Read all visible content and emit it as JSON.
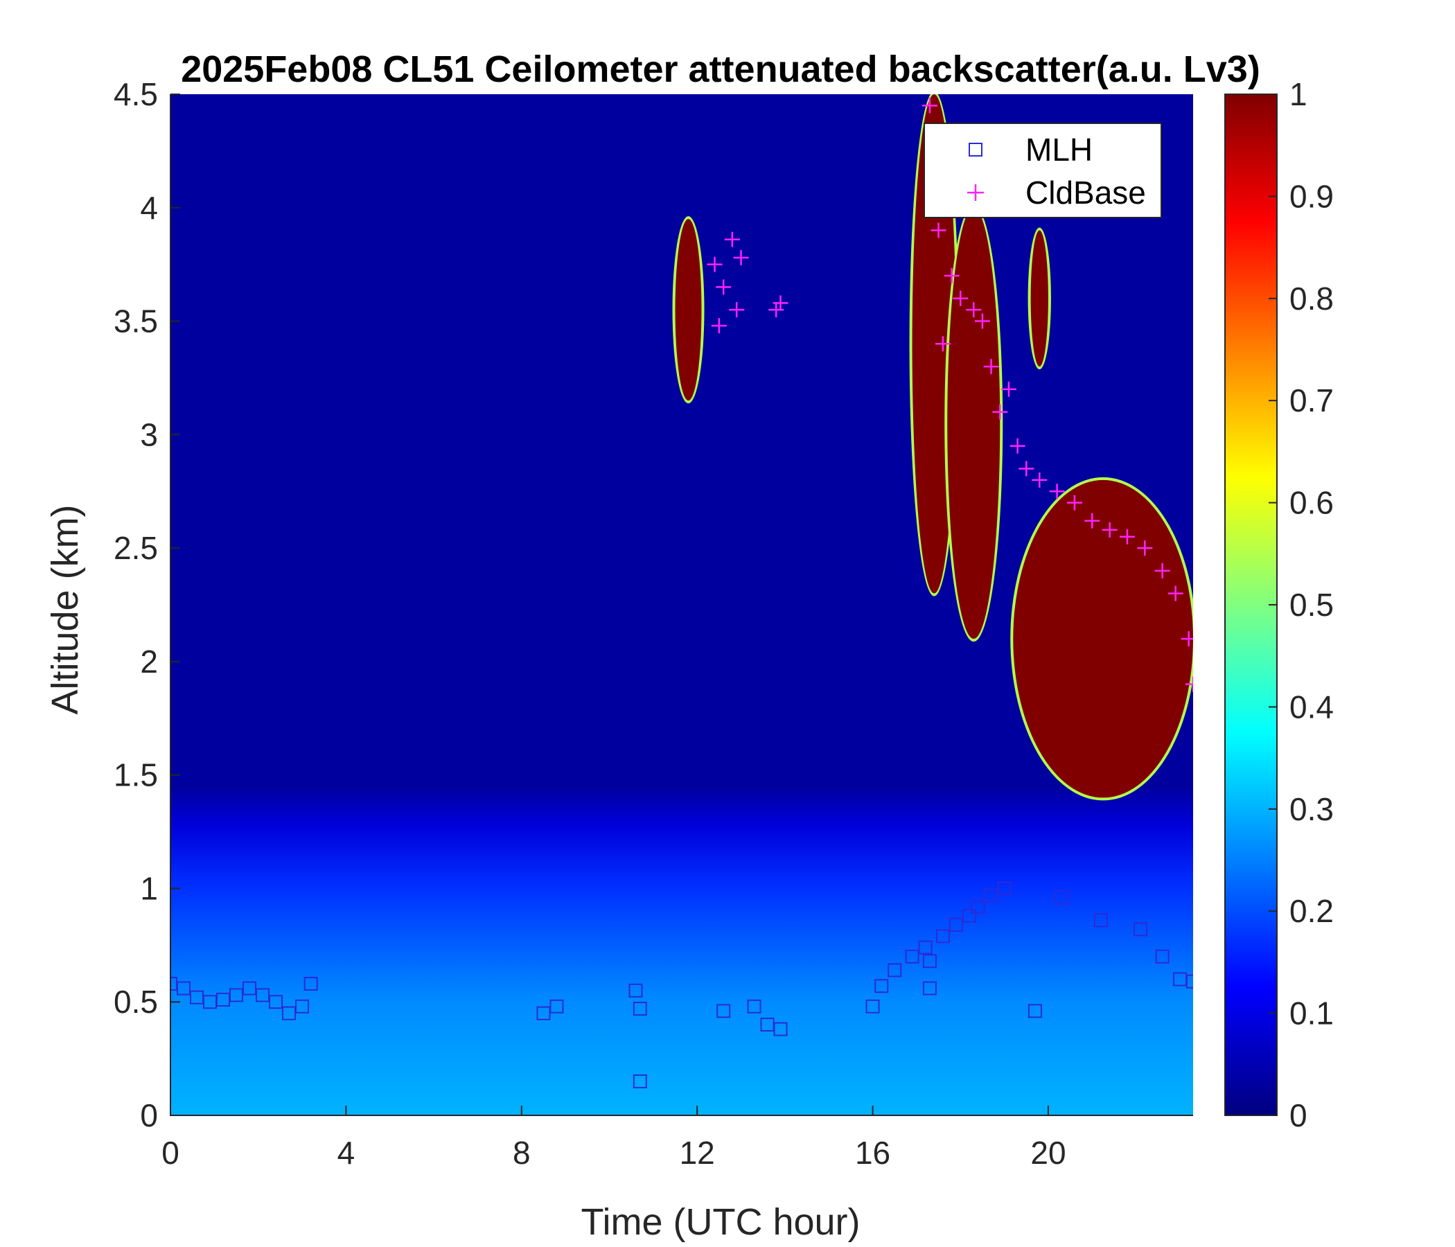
{
  "chart_data": {
    "type": "heatmap",
    "title": "2025Feb08 CL51 Ceilometer attenuated backscatter(a.u. Lv3)",
    "xlabel": "Time (UTC hour)",
    "ylabel": "Altitude (km)",
    "xlim": [
      0,
      23.3
    ],
    "ylim": [
      0,
      4.5
    ],
    "x_ticks": [
      0,
      4,
      8,
      12,
      16,
      20
    ],
    "x_tick_labels": [
      "0",
      "4",
      "8",
      "12",
      "16",
      "20"
    ],
    "y_ticks": [
      0,
      0.5,
      1,
      1.5,
      2,
      2.5,
      3,
      3.5,
      4,
      4.5
    ],
    "y_tick_labels": [
      "0",
      "0.5",
      "1",
      "1.5",
      "2",
      "2.5",
      "3",
      "3.5",
      "4",
      "4.5"
    ],
    "colorbar": {
      "range": [
        0,
        1
      ],
      "ticks": [
        0,
        0.1,
        0.2,
        0.3,
        0.4,
        0.5,
        0.6,
        0.7,
        0.8,
        0.9,
        1
      ],
      "tick_labels": [
        "0",
        "0.1",
        "0.2",
        "0.3",
        "0.4",
        "0.5",
        "0.6",
        "0.7",
        "0.8",
        "0.9",
        "1"
      ],
      "colormap": "jet"
    },
    "legend": {
      "placement": "top-right",
      "entries": [
        {
          "label": "MLH",
          "marker": "square",
          "color": "#2b2bd6"
        },
        {
          "label": "CldBase",
          "marker": "plus",
          "color": "#ff22ff"
        }
      ]
    },
    "heatmap_features": {
      "background_level": 0.03,
      "boundary_layer": {
        "top_km": 1.0,
        "level": 0.22
      },
      "clouds": [
        {
          "t_start": 11.5,
          "t_end": 12.1,
          "base_km": 3.15,
          "top_km": 3.95
        },
        {
          "t_start": 16.9,
          "t_end": 17.9,
          "base_km": 2.3,
          "top_km": 4.5
        },
        {
          "t_start": 17.7,
          "t_end": 18.9,
          "base_km": 2.1,
          "top_km": 4.0
        },
        {
          "t_start": 19.6,
          "t_end": 20.0,
          "base_km": 3.3,
          "top_km": 3.9
        },
        {
          "t_start": 19.2,
          "t_end": 23.3,
          "base_km": 1.4,
          "top_km": 2.8
        }
      ]
    },
    "series": [
      {
        "name": "MLH",
        "marker": "square",
        "points": [
          [
            0.0,
            0.58
          ],
          [
            0.3,
            0.56
          ],
          [
            0.6,
            0.52
          ],
          [
            0.9,
            0.5
          ],
          [
            1.2,
            0.51
          ],
          [
            1.5,
            0.53
          ],
          [
            1.8,
            0.56
          ],
          [
            2.1,
            0.53
          ],
          [
            2.4,
            0.5
          ],
          [
            2.7,
            0.45
          ],
          [
            3.0,
            0.48
          ],
          [
            3.2,
            0.58
          ],
          [
            8.5,
            0.45
          ],
          [
            8.8,
            0.48
          ],
          [
            10.6,
            0.55
          ],
          [
            10.7,
            0.47
          ],
          [
            10.7,
            0.15
          ],
          [
            12.6,
            0.46
          ],
          [
            13.3,
            0.48
          ],
          [
            13.6,
            0.4
          ],
          [
            13.9,
            0.38
          ],
          [
            16.0,
            0.48
          ],
          [
            16.2,
            0.57
          ],
          [
            16.5,
            0.64
          ],
          [
            16.9,
            0.7
          ],
          [
            17.2,
            0.74
          ],
          [
            17.3,
            0.68
          ],
          [
            17.3,
            0.56
          ],
          [
            17.6,
            0.79
          ],
          [
            17.9,
            0.84
          ],
          [
            18.2,
            0.88
          ],
          [
            18.4,
            0.92
          ],
          [
            18.7,
            0.97
          ],
          [
            19.0,
            1.0
          ],
          [
            19.7,
            0.46
          ],
          [
            20.3,
            0.96
          ],
          [
            21.2,
            0.86
          ],
          [
            22.1,
            0.82
          ],
          [
            22.6,
            0.7
          ],
          [
            23.0,
            0.6
          ],
          [
            23.3,
            0.59
          ]
        ]
      },
      {
        "name": "CldBase",
        "marker": "plus",
        "points": [
          [
            12.4,
            3.75
          ],
          [
            12.6,
            3.65
          ],
          [
            12.8,
            3.86
          ],
          [
            12.9,
            3.55
          ],
          [
            13.0,
            3.78
          ],
          [
            12.5,
            3.48
          ],
          [
            13.8,
            3.55
          ],
          [
            13.9,
            3.58
          ],
          [
            17.3,
            4.45
          ],
          [
            17.5,
            3.9
          ],
          [
            17.8,
            3.7
          ],
          [
            18.0,
            3.6
          ],
          [
            17.6,
            3.4
          ],
          [
            18.3,
            3.55
          ],
          [
            18.5,
            3.5
          ],
          [
            18.7,
            3.3
          ],
          [
            18.9,
            3.1
          ],
          [
            19.1,
            3.2
          ],
          [
            19.3,
            2.95
          ],
          [
            19.5,
            2.85
          ],
          [
            19.8,
            2.8
          ],
          [
            20.2,
            2.75
          ],
          [
            20.6,
            2.7
          ],
          [
            21.0,
            2.62
          ],
          [
            21.4,
            2.58
          ],
          [
            21.8,
            2.55
          ],
          [
            22.2,
            2.5
          ],
          [
            22.6,
            2.4
          ],
          [
            22.9,
            2.3
          ],
          [
            23.2,
            2.1
          ],
          [
            23.3,
            1.9
          ]
        ]
      }
    ]
  }
}
